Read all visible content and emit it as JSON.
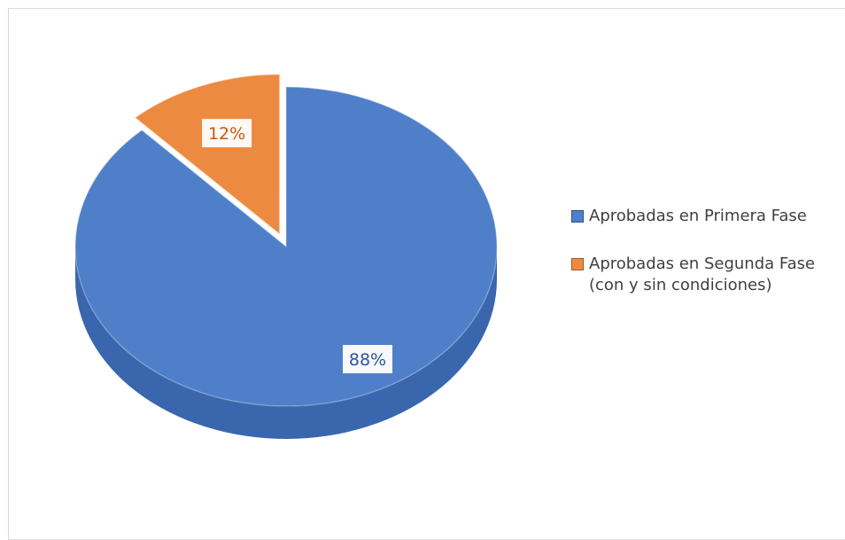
{
  "chart_data": {
    "type": "pie",
    "style": "3d",
    "title": "",
    "start_angle_deg": 0,
    "direction": "clockwise",
    "legend_position": "right",
    "slices": [
      {
        "name": "Aprobadas en Primera Fase",
        "value": 88,
        "label": "88%",
        "color": "#4f7fc8",
        "side_color": "#3a66ae",
        "label_color": "#2f5597",
        "exploded": false
      },
      {
        "name": "Aprobadas en Segunda Fase\n(con y sin condiciones)",
        "value": 12,
        "label": "12%",
        "color": "#ed8a41",
        "side_color": "#c8702f",
        "label_color": "#c55a11",
        "exploded": true
      }
    ]
  }
}
